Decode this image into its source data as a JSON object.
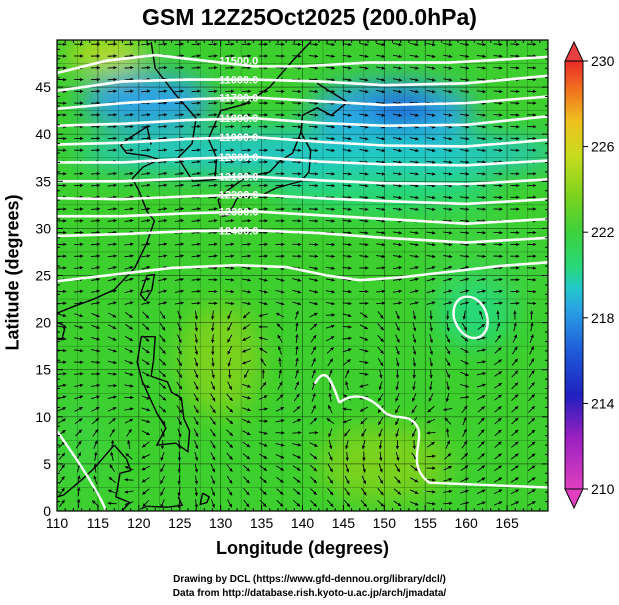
{
  "title": "GSM 12Z25Oct2025 (200.0hPa)",
  "x_axis": {
    "label": "Longitude (degrees)",
    "ticks": [
      110,
      115,
      120,
      125,
      130,
      135,
      140,
      145,
      150,
      155,
      160,
      165
    ],
    "range": [
      110,
      170
    ]
  },
  "y_axis": {
    "label": "Latitude  (degrees)",
    "ticks": [
      0,
      5,
      10,
      15,
      20,
      25,
      30,
      35,
      40,
      45
    ],
    "range": [
      0,
      50
    ]
  },
  "colorbar": {
    "ticks": [
      210,
      214,
      218,
      222,
      226,
      230
    ],
    "range": [
      210,
      230
    ],
    "colors": [
      "#e040c0",
      "#9a20c0",
      "#2020c0",
      "#1e5ad8",
      "#2aa2e6",
      "#22c8c8",
      "#28d878",
      "#3cd23c",
      "#7ad21e",
      "#c8dc1e",
      "#f0c01e",
      "#f06a1e",
      "#e82a2a"
    ]
  },
  "contours": [
    {
      "label": "11500.0",
      "path": [
        [
          110,
          46.5
        ],
        [
          116,
          47.8
        ],
        [
          122,
          48.4
        ],
        [
          128,
          47.8
        ],
        [
          134,
          47.2
        ],
        [
          140,
          47.2
        ],
        [
          148,
          47.6
        ],
        [
          158,
          47.6
        ],
        [
          170,
          48.2
        ]
      ]
    },
    {
      "label": "11600.0",
      "path": [
        [
          110,
          44.6
        ],
        [
          118,
          45.6
        ],
        [
          126,
          45.8
        ],
        [
          134,
          45.8
        ],
        [
          142,
          45.6
        ],
        [
          150,
          45.2
        ],
        [
          160,
          45.4
        ],
        [
          170,
          46.2
        ]
      ]
    },
    {
      "label": "11700.0",
      "path": [
        [
          110,
          42.7
        ],
        [
          118,
          43.3
        ],
        [
          126,
          43.7
        ],
        [
          134,
          43.9
        ],
        [
          142,
          43.5
        ],
        [
          150,
          43.1
        ],
        [
          160,
          43.3
        ],
        [
          170,
          44.0
        ]
      ]
    },
    {
      "label": "11800.0",
      "path": [
        [
          110,
          40.9
        ],
        [
          118,
          41.1
        ],
        [
          126,
          41.5
        ],
        [
          134,
          41.7
        ],
        [
          142,
          41.2
        ],
        [
          150,
          40.9
        ],
        [
          160,
          41.0
        ],
        [
          170,
          41.9
        ]
      ]
    },
    {
      "label": "11900.0",
      "path": [
        [
          110,
          38.9
        ],
        [
          118,
          39.1
        ],
        [
          126,
          39.5
        ],
        [
          134,
          39.7
        ],
        [
          142,
          39.2
        ],
        [
          150,
          38.8
        ],
        [
          160,
          38.7
        ],
        [
          170,
          39.4
        ]
      ]
    },
    {
      "label": "12000.0",
      "path": [
        [
          110,
          37.0
        ],
        [
          118,
          37.0
        ],
        [
          126,
          37.4
        ],
        [
          134,
          37.6
        ],
        [
          142,
          37.1
        ],
        [
          150,
          36.8
        ],
        [
          160,
          36.7
        ],
        [
          170,
          37.2
        ]
      ]
    },
    {
      "label": "12100.0",
      "path": [
        [
          110,
          35.0
        ],
        [
          118,
          35.0
        ],
        [
          126,
          35.3
        ],
        [
          134,
          35.5
        ],
        [
          142,
          35.1
        ],
        [
          150,
          34.8
        ],
        [
          160,
          34.7
        ],
        [
          170,
          35.2
        ]
      ]
    },
    {
      "label": "12200.0",
      "path": [
        [
          110,
          33.2
        ],
        [
          118,
          33.1
        ],
        [
          126,
          33.4
        ],
        [
          134,
          33.6
        ],
        [
          142,
          33.2
        ],
        [
          150,
          32.9
        ],
        [
          160,
          32.6
        ],
        [
          170,
          33.1
        ]
      ]
    },
    {
      "label": "12300.0",
      "path": [
        [
          110,
          31.3
        ],
        [
          118,
          31.3
        ],
        [
          126,
          31.6
        ],
        [
          134,
          31.8
        ],
        [
          142,
          31.4
        ],
        [
          150,
          31.0
        ],
        [
          160,
          30.5
        ],
        [
          170,
          31.0
        ]
      ]
    },
    {
      "label": "12400.0",
      "path": [
        [
          110,
          29.2
        ],
        [
          118,
          29.4
        ],
        [
          126,
          29.7
        ],
        [
          134,
          29.8
        ],
        [
          142,
          29.5
        ],
        [
          150,
          29.0
        ],
        [
          160,
          28.5
        ],
        [
          170,
          29.0
        ]
      ]
    },
    {
      "label": "12500.0",
      "path": [
        [
          110,
          24.4
        ],
        [
          116,
          25.0
        ],
        [
          124,
          25.8
        ],
        [
          132,
          26.1
        ],
        [
          138,
          25.9
        ],
        [
          143,
          25.0
        ],
        [
          147,
          24.5
        ],
        [
          152,
          24.8
        ],
        [
          158,
          25.4
        ],
        [
          164,
          26.0
        ],
        [
          170,
          26.4
        ]
      ]
    }
  ],
  "regions": [
    {
      "value": 216,
      "ellipse": [
        151,
        42.5,
        10,
        3.2
      ]
    },
    {
      "value": 216.5,
      "ellipse": [
        121,
        43.5,
        8,
        3
      ]
    },
    {
      "value": 214.5,
      "ellipse": [
        152,
        42.6,
        4,
        1.6
      ]
    },
    {
      "value": 219,
      "ellipse": [
        142,
        38,
        30,
        2.5
      ]
    },
    {
      "value": 220.5,
      "ellipse": [
        150,
        34,
        14,
        2.2
      ]
    },
    {
      "value": 221,
      "ellipse": [
        162,
        26,
        7,
        5
      ]
    },
    {
      "value": 220.5,
      "ellipse": [
        161,
        21,
        4.5,
        3.5
      ]
    },
    {
      "value": 221.5,
      "ellipse": [
        113,
        7,
        3,
        5
      ]
    },
    {
      "value": 225.5,
      "ellipse": [
        116,
        48.5,
        5,
        1.8
      ]
    },
    {
      "value": 223,
      "ellipse": [
        130,
        16,
        5,
        6
      ]
    },
    {
      "value": 223,
      "ellipse": [
        150,
        5,
        8,
        4
      ]
    }
  ]
}
